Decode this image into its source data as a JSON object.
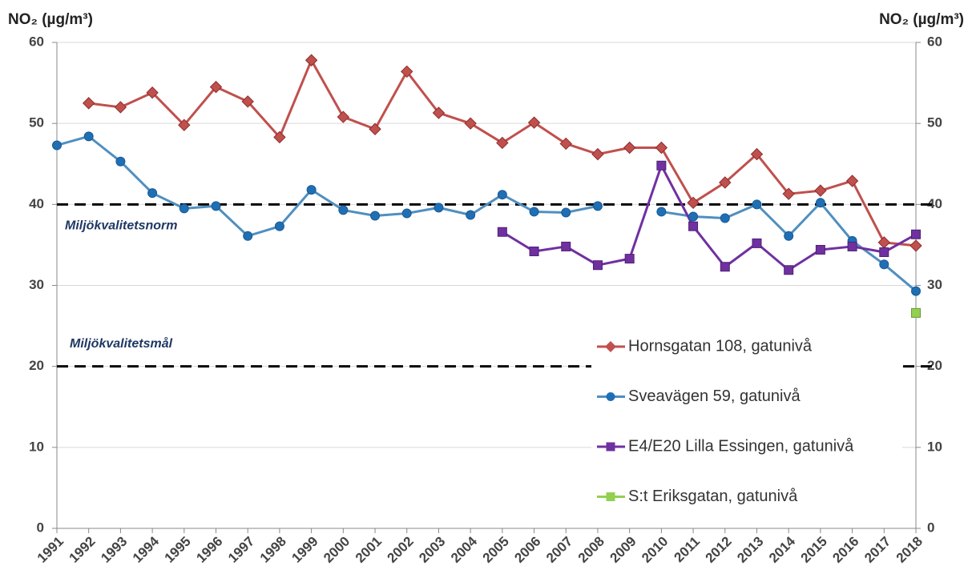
{
  "chart_data": {
    "type": "line",
    "y_axis_label": "NO₂ (µg/m³)",
    "y2_axis_label": "NO₂ (µg/m³)",
    "categories": [
      "1991",
      "1992",
      "1993",
      "1994",
      "1995",
      "1996",
      "1997",
      "1998",
      "1999",
      "2000",
      "2001",
      "2002",
      "2003",
      "2004",
      "2005",
      "2006",
      "2007",
      "2008",
      "2009",
      "2010",
      "2011",
      "2012",
      "2013",
      "2014",
      "2015",
      "2016",
      "2017",
      "2018"
    ],
    "series": [
      {
        "name": "Hornsgatan 108, gatunivå",
        "color": "#c0504d",
        "marker": "diamond",
        "values": [
          null,
          52.5,
          52,
          53.8,
          49.8,
          54.5,
          52.7,
          48.3,
          57.8,
          50.8,
          49.3,
          56.4,
          51.3,
          50.0,
          47.6,
          50.1,
          47.5,
          46.2,
          47.0,
          47.0,
          40.2,
          42.7,
          46.2,
          41.3,
          41.7,
          42.9,
          35.3,
          34.9
        ]
      },
      {
        "name": "Sveavägen 59, gatunivå",
        "color": "#4f8fc0",
        "marker": "circle",
        "values": [
          47.3,
          48.4,
          45.3,
          41.4,
          39.5,
          39.8,
          36.1,
          37.3,
          41.8,
          39.3,
          38.6,
          38.9,
          39.6,
          38.7,
          41.2,
          39.1,
          39.0,
          39.8,
          null,
          39.1,
          38.5,
          38.3,
          40.0,
          36.1,
          40.2,
          35.5,
          32.6,
          29.3
        ]
      },
      {
        "name": "E4/E20 Lilla Essingen, gatunivå",
        "color": "#7030a0",
        "marker": "square",
        "values": [
          null,
          null,
          null,
          null,
          null,
          null,
          null,
          null,
          null,
          null,
          null,
          null,
          null,
          null,
          36.6,
          34.2,
          34.8,
          32.5,
          33.3,
          44.8,
          37.3,
          32.3,
          35.2,
          31.9,
          34.4,
          34.8,
          34.1,
          36.3
        ]
      },
      {
        "name": "S:t Eriksgatan, gatunivå",
        "color": "#92d050",
        "marker": "square",
        "values": [
          null,
          null,
          null,
          null,
          null,
          null,
          null,
          null,
          null,
          null,
          null,
          null,
          null,
          null,
          null,
          null,
          null,
          null,
          null,
          null,
          null,
          null,
          null,
          null,
          null,
          null,
          null,
          26.6
        ]
      }
    ],
    "reference_lines": [
      {
        "value": 40,
        "label": "Miljökvalitetsnorm"
      },
      {
        "value": 20,
        "label": "Miljökvalitetsmål"
      }
    ],
    "ylim": [
      0,
      60
    ],
    "yticks": [
      0,
      10,
      20,
      30,
      40,
      50,
      60
    ],
    "y2lim": [
      0,
      60
    ],
    "y2ticks": [
      0,
      10,
      20,
      30,
      40,
      50,
      60
    ],
    "grid": true,
    "legend": "lower right"
  }
}
